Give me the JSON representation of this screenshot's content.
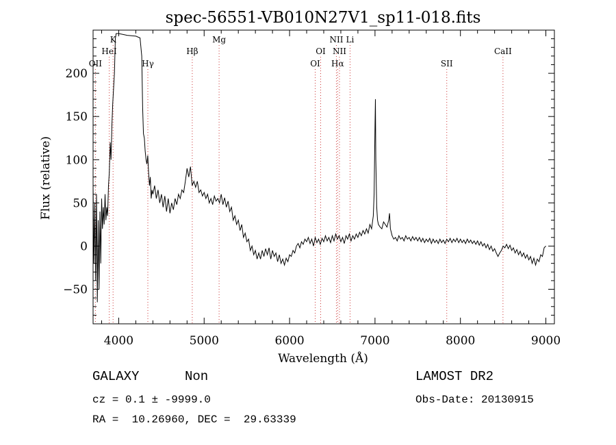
{
  "info": {
    "object_class": "GALAXY",
    "subclass": "Non",
    "survey": "LAMOST DR2",
    "cz_label": "cz =",
    "cz_value": "0.1",
    "cz_pm": "±",
    "cz_error": "-9999.0",
    "obs_date_label": "Obs-Date:",
    "obs_date": "20130915",
    "ra_label": "RA =",
    "ra": "10.26960,",
    "dec_label": "DEC =",
    "dec": "29.63339"
  },
  "chart_data": {
    "type": "line",
    "title": "spec-56551-VB010N27V1_sp11-018.fits",
    "xlabel": "Wavelength (Å)",
    "ylabel": "Flux (relative)",
    "xlim": [
      3700,
      9100
    ],
    "ylim": [
      -90,
      250
    ],
    "xticks": [
      4000,
      5000,
      6000,
      7000,
      8000,
      9000
    ],
    "yticks": [
      -50,
      0,
      50,
      100,
      150,
      200
    ],
    "grid": false,
    "line_color": "#000000",
    "marker_color": "#cc3333",
    "lines": [
      {
        "name": "OII",
        "x": 3727,
        "tier": 3
      },
      {
        "name": "HeI",
        "x": 3889,
        "tier": 2
      },
      {
        "name": "K",
        "x": 3934,
        "tier": 1
      },
      {
        "name": "Hγ",
        "x": 4341,
        "tier": 3
      },
      {
        "name": "Hβ",
        "x": 4861,
        "tier": 2
      },
      {
        "name": "Mg",
        "x": 5175,
        "tier": 1
      },
      {
        "name": "OI",
        "x": 6300,
        "tier": 3
      },
      {
        "name": "OI",
        "x": 6364,
        "tier": 2
      },
      {
        "name": "Hα",
        "x": 6563,
        "tier": 3
      },
      {
        "name": "NII",
        "x": 6548,
        "tier": 1
      },
      {
        "name": "NII",
        "x": 6584,
        "tier": 2
      },
      {
        "name": "Li",
        "x": 6708,
        "tier": 1
      },
      {
        "name": "SII",
        "x": 7840,
        "tier": 3
      },
      {
        "name": "CaII",
        "x": 8498,
        "tier": 2
      }
    ],
    "spectrum": [
      [
        3700,
        70
      ],
      [
        3710,
        -20
      ],
      [
        3720,
        50
      ],
      [
        3730,
        -40
      ],
      [
        3740,
        60
      ],
      [
        3750,
        -65
      ],
      [
        3760,
        30
      ],
      [
        3770,
        -50
      ],
      [
        3780,
        40
      ],
      [
        3790,
        -20
      ],
      [
        3800,
        55
      ],
      [
        3810,
        20
      ],
      [
        3820,
        45
      ],
      [
        3830,
        25
      ],
      [
        3840,
        60
      ],
      [
        3850,
        30
      ],
      [
        3860,
        45
      ],
      [
        3870,
        35
      ],
      [
        3880,
        70
      ],
      [
        3890,
        85
      ],
      [
        3900,
        120
      ],
      [
        3910,
        100
      ],
      [
        3920,
        140
      ],
      [
        3930,
        165
      ],
      [
        3950,
        200
      ],
      [
        3960,
        240
      ],
      [
        3970,
        246
      ],
      [
        4000,
        246
      ],
      [
        4100,
        244
      ],
      [
        4200,
        243
      ],
      [
        4250,
        241
      ],
      [
        4270,
        220
      ],
      [
        4280,
        160
      ],
      [
        4290,
        130
      ],
      [
        4300,
        125
      ],
      [
        4310,
        110
      ],
      [
        4320,
        100
      ],
      [
        4330,
        95
      ],
      [
        4340,
        105
      ],
      [
        4350,
        85
      ],
      [
        4360,
        70
      ],
      [
        4370,
        80
      ],
      [
        4380,
        55
      ],
      [
        4390,
        65
      ],
      [
        4400,
        60
      ],
      [
        4420,
        70
      ],
      [
        4440,
        55
      ],
      [
        4460,
        65
      ],
      [
        4480,
        50
      ],
      [
        4500,
        60
      ],
      [
        4520,
        45
      ],
      [
        4540,
        58
      ],
      [
        4560,
        40
      ],
      [
        4580,
        55
      ],
      [
        4600,
        38
      ],
      [
        4620,
        50
      ],
      [
        4640,
        42
      ],
      [
        4660,
        55
      ],
      [
        4680,
        48
      ],
      [
        4700,
        60
      ],
      [
        4720,
        55
      ],
      [
        4740,
        65
      ],
      [
        4760,
        62
      ],
      [
        4780,
        75
      ],
      [
        4800,
        90
      ],
      [
        4820,
        80
      ],
      [
        4840,
        92
      ],
      [
        4860,
        70
      ],
      [
        4880,
        75
      ],
      [
        4900,
        68
      ],
      [
        4920,
        75
      ],
      [
        4940,
        62
      ],
      [
        4960,
        65
      ],
      [
        4980,
        58
      ],
      [
        5000,
        62
      ],
      [
        5020,
        55
      ],
      [
        5040,
        60
      ],
      [
        5060,
        50
      ],
      [
        5080,
        55
      ],
      [
        5100,
        48
      ],
      [
        5120,
        58
      ],
      [
        5140,
        52
      ],
      [
        5160,
        55
      ],
      [
        5180,
        50
      ],
      [
        5200,
        60
      ],
      [
        5220,
        48
      ],
      [
        5240,
        56
      ],
      [
        5260,
        45
      ],
      [
        5280,
        52
      ],
      [
        5300,
        40
      ],
      [
        5320,
        45
      ],
      [
        5340,
        30
      ],
      [
        5360,
        35
      ],
      [
        5380,
        25
      ],
      [
        5400,
        30
      ],
      [
        5420,
        18
      ],
      [
        5440,
        25
      ],
      [
        5460,
        10
      ],
      [
        5480,
        15
      ],
      [
        5500,
        5
      ],
      [
        5520,
        8
      ],
      [
        5540,
        -5
      ],
      [
        5560,
        0
      ],
      [
        5580,
        -10
      ],
      [
        5600,
        -5
      ],
      [
        5620,
        -15
      ],
      [
        5640,
        -8
      ],
      [
        5660,
        -15
      ],
      [
        5680,
        -5
      ],
      [
        5700,
        -12
      ],
      [
        5720,
        -3
      ],
      [
        5740,
        -10
      ],
      [
        5760,
        -2
      ],
      [
        5780,
        -15
      ],
      [
        5800,
        -5
      ],
      [
        5820,
        -12
      ],
      [
        5840,
        -8
      ],
      [
        5860,
        -18
      ],
      [
        5880,
        -10
      ],
      [
        5900,
        -20
      ],
      [
        5920,
        -15
      ],
      [
        5940,
        -22
      ],
      [
        5960,
        -14
      ],
      [
        5980,
        -18
      ],
      [
        6000,
        -10
      ],
      [
        6020,
        -12
      ],
      [
        6040,
        -5
      ],
      [
        6060,
        -8
      ],
      [
        6080,
        0
      ],
      [
        6100,
        3
      ],
      [
        6120,
        -2
      ],
      [
        6140,
        5
      ],
      [
        6160,
        2
      ],
      [
        6180,
        8
      ],
      [
        6200,
        5
      ],
      [
        6220,
        10
      ],
      [
        6240,
        3
      ],
      [
        6260,
        8
      ],
      [
        6280,
        0
      ],
      [
        6300,
        10
      ],
      [
        6320,
        4
      ],
      [
        6340,
        8
      ],
      [
        6360,
        2
      ],
      [
        6380,
        9
      ],
      [
        6400,
        5
      ],
      [
        6420,
        12
      ],
      [
        6440,
        6
      ],
      [
        6460,
        10
      ],
      [
        6480,
        4
      ],
      [
        6500,
        12
      ],
      [
        6520,
        6
      ],
      [
        6540,
        14
      ],
      [
        6560,
        8
      ],
      [
        6580,
        12
      ],
      [
        6600,
        5
      ],
      [
        6620,
        10
      ],
      [
        6640,
        3
      ],
      [
        6660,
        12
      ],
      [
        6680,
        8
      ],
      [
        6700,
        14
      ],
      [
        6720,
        6
      ],
      [
        6740,
        12
      ],
      [
        6760,
        8
      ],
      [
        6780,
        14
      ],
      [
        6800,
        10
      ],
      [
        6820,
        16
      ],
      [
        6840,
        12
      ],
      [
        6860,
        18
      ],
      [
        6880,
        14
      ],
      [
        6900,
        20
      ],
      [
        6920,
        15
      ],
      [
        6940,
        25
      ],
      [
        6960,
        20
      ],
      [
        6980,
        35
      ],
      [
        6990,
        60
      ],
      [
        7000,
        140
      ],
      [
        7005,
        170
      ],
      [
        7010,
        100
      ],
      [
        7020,
        45
      ],
      [
        7030,
        30
      ],
      [
        7040,
        25
      ],
      [
        7060,
        22
      ],
      [
        7080,
        20
      ],
      [
        7100,
        28
      ],
      [
        7120,
        25
      ],
      [
        7140,
        22
      ],
      [
        7160,
        30
      ],
      [
        7170,
        38
      ],
      [
        7180,
        20
      ],
      [
        7200,
        12
      ],
      [
        7220,
        8
      ],
      [
        7240,
        10
      ],
      [
        7260,
        6
      ],
      [
        7280,
        12
      ],
      [
        7300,
        8
      ],
      [
        7320,
        10
      ],
      [
        7340,
        6
      ],
      [
        7360,
        12
      ],
      [
        7380,
        8
      ],
      [
        7400,
        10
      ],
      [
        7420,
        6
      ],
      [
        7440,
        11
      ],
      [
        7460,
        7
      ],
      [
        7480,
        10
      ],
      [
        7500,
        6
      ],
      [
        7520,
        10
      ],
      [
        7540,
        5
      ],
      [
        7560,
        9
      ],
      [
        7580,
        4
      ],
      [
        7600,
        8
      ],
      [
        7620,
        5
      ],
      [
        7640,
        9
      ],
      [
        7660,
        3
      ],
      [
        7680,
        8
      ],
      [
        7700,
        4
      ],
      [
        7720,
        7
      ],
      [
        7740,
        3
      ],
      [
        7760,
        8
      ],
      [
        7780,
        4
      ],
      [
        7800,
        7
      ],
      [
        7820,
        3
      ],
      [
        7840,
        8
      ],
      [
        7860,
        5
      ],
      [
        7880,
        9
      ],
      [
        7900,
        4
      ],
      [
        7920,
        8
      ],
      [
        7940,
        5
      ],
      [
        7960,
        9
      ],
      [
        7980,
        4
      ],
      [
        8000,
        8
      ],
      [
        8020,
        4
      ],
      [
        8040,
        7
      ],
      [
        8060,
        3
      ],
      [
        8080,
        8
      ],
      [
        8100,
        4
      ],
      [
        8120,
        7
      ],
      [
        8140,
        3
      ],
      [
        8160,
        6
      ],
      [
        8180,
        2
      ],
      [
        8200,
        6
      ],
      [
        8220,
        1
      ],
      [
        8240,
        5
      ],
      [
        8260,
        0
      ],
      [
        8280,
        3
      ],
      [
        8300,
        -2
      ],
      [
        8320,
        2
      ],
      [
        8340,
        -4
      ],
      [
        8360,
        0
      ],
      [
        8380,
        -6
      ],
      [
        8400,
        -3
      ],
      [
        8420,
        -8
      ],
      [
        8440,
        -12
      ],
      [
        8460,
        -8
      ],
      [
        8480,
        -5
      ],
      [
        8500,
        0
      ],
      [
        8520,
        -2
      ],
      [
        8540,
        2
      ],
      [
        8560,
        -3
      ],
      [
        8580,
        1
      ],
      [
        8600,
        -5
      ],
      [
        8620,
        -2
      ],
      [
        8640,
        -8
      ],
      [
        8660,
        -4
      ],
      [
        8680,
        -10
      ],
      [
        8700,
        -6
      ],
      [
        8720,
        -12
      ],
      [
        8740,
        -8
      ],
      [
        8760,
        -14
      ],
      [
        8780,
        -10
      ],
      [
        8800,
        -16
      ],
      [
        8820,
        -12
      ],
      [
        8840,
        -20
      ],
      [
        8860,
        -14
      ],
      [
        8880,
        -22
      ],
      [
        8900,
        -15
      ],
      [
        8920,
        -18
      ],
      [
        8940,
        -10
      ],
      [
        8960,
        -12
      ],
      [
        8980,
        -2
      ],
      [
        9000,
        0
      ]
    ]
  }
}
